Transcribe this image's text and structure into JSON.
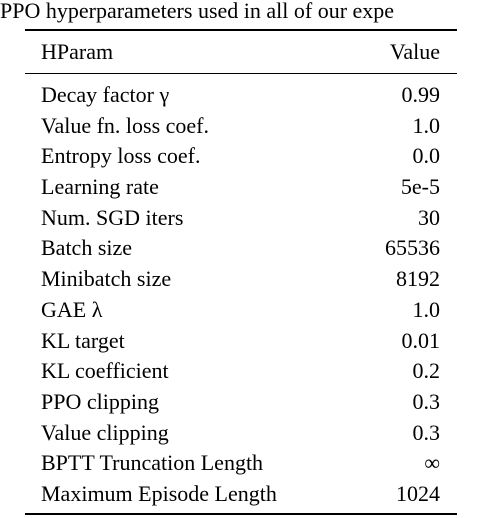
{
  "caption": "PPO hyperparameters used in all of our expe",
  "table": {
    "headers": {
      "name": "HParam",
      "value": "Value"
    },
    "rows": [
      {
        "name": "Decay factor γ",
        "value": "0.99"
      },
      {
        "name": "Value fn. loss coef.",
        "value": "1.0"
      },
      {
        "name": "Entropy loss coef.",
        "value": "0.0"
      },
      {
        "name": "Learning rate",
        "value": "5e-5"
      },
      {
        "name": "Num. SGD iters",
        "value": "30"
      },
      {
        "name": "Batch size",
        "value": "65536"
      },
      {
        "name": "Minibatch size",
        "value": "8192"
      },
      {
        "name": "GAE λ",
        "value": "1.0"
      },
      {
        "name": "KL target",
        "value": "0.01"
      },
      {
        "name": "KL coefficient",
        "value": "0.2"
      },
      {
        "name": "PPO clipping",
        "value": "0.3"
      },
      {
        "name": "Value clipping",
        "value": "0.3"
      },
      {
        "name": "BPTT Truncation Length",
        "value": "∞"
      },
      {
        "name": "Maximum Episode Length",
        "value": "1024"
      }
    ]
  }
}
